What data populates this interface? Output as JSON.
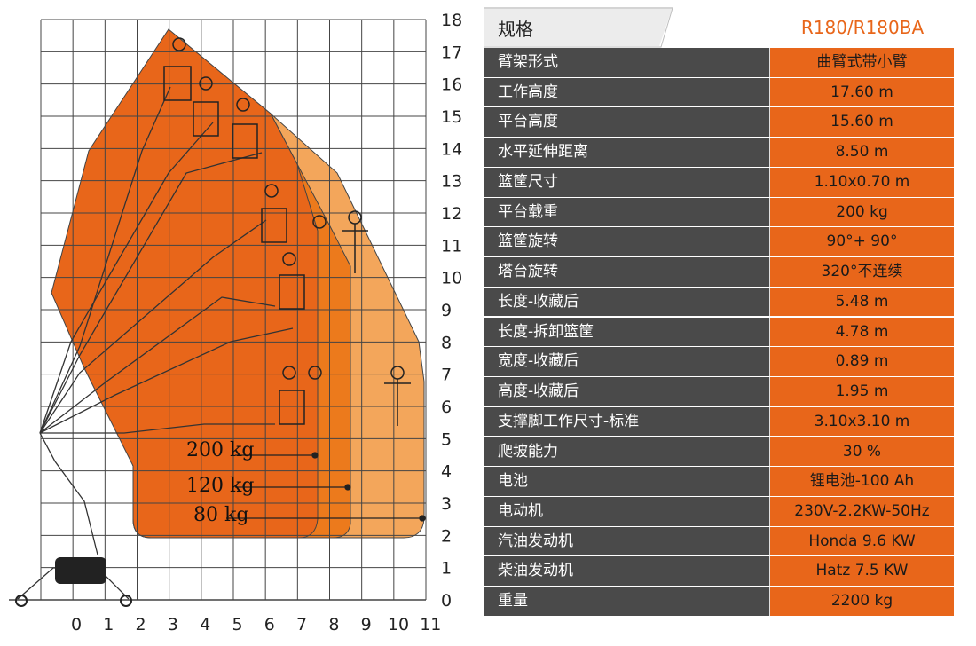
{
  "diagram": {
    "y_ticks": [
      "0",
      "1",
      "2",
      "3",
      "4",
      "5",
      "6",
      "7",
      "8",
      "9",
      "10",
      "11",
      "12",
      "13",
      "14",
      "15",
      "16",
      "17",
      "18"
    ],
    "x_ticks": [
      "0",
      "1",
      "2",
      "3",
      "4",
      "5",
      "6",
      "7",
      "8",
      "9",
      "10",
      "11"
    ],
    "load_labels": [
      {
        "text": "200 kg",
        "color": "#e8661a"
      },
      {
        "text": "120 kg",
        "color": "#ec7a1c"
      },
      {
        "text": "80 kg",
        "color": "#f3a65b"
      }
    ],
    "colors": {
      "zone_200": "#e8661a",
      "zone_120": "#ec7a1c",
      "zone_80": "#f3a65b",
      "grid": "#444444"
    }
  },
  "spec": {
    "header_label": "规格",
    "header_model": "R180/R180BA",
    "rows": [
      {
        "label": "臂架形式",
        "value": "曲臂式带小臂"
      },
      {
        "label": "工作高度",
        "value": "17.60 m"
      },
      {
        "label": "平台高度",
        "value": "15.60 m"
      },
      {
        "label": "水平延伸距离",
        "value": "8.50 m"
      },
      {
        "label": "篮筐尺寸",
        "value": "1.10x0.70 m"
      },
      {
        "label": "平台载重",
        "value": "200 kg"
      },
      {
        "label": "篮筐旋转",
        "value": "90°+ 90°"
      },
      {
        "label": "塔台旋转",
        "value": "320°不连续"
      },
      {
        "label": "长度-收藏后",
        "value": "5.48 m"
      },
      {
        "label": "长度-拆卸篮筐",
        "value": "4.78 m"
      },
      {
        "label": "宽度-收藏后",
        "value": "0.89 m"
      },
      {
        "label": "高度-收藏后",
        "value": "1.95 m"
      },
      {
        "label": "支撑脚工作尺寸-标准",
        "value": "3.10x3.10 m"
      },
      {
        "label": "爬坡能力",
        "value": "30 %"
      },
      {
        "label": "电池",
        "value": "锂电池-100 Ah"
      },
      {
        "label": "电动机",
        "value": "230V-2.2KW-50Hz"
      },
      {
        "label": "汽油发动机",
        "value": "Honda 9.6 KW"
      },
      {
        "label": "柴油发动机",
        "value": "Hatz 7.5 KW"
      },
      {
        "label": "重量",
        "value": "2200 kg"
      }
    ]
  }
}
